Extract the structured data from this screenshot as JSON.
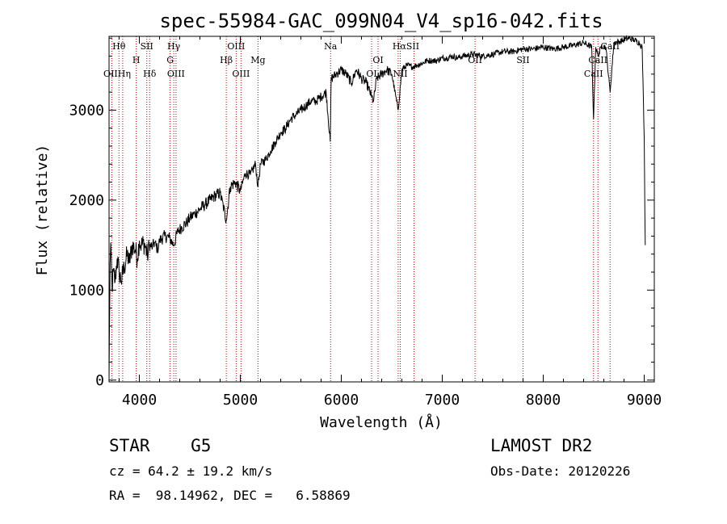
{
  "chart_data": {
    "type": "line",
    "title": "spec-55984-GAC_099N04_V4_sp16-042.fits",
    "xlabel": "Wavelength (Å)",
    "ylabel": "Flux (relative)",
    "xlim": [
      3700,
      9100
    ],
    "ylim": [
      -20,
      3820
    ],
    "xticks": [
      4000,
      5000,
      6000,
      7000,
      8000,
      9000
    ],
    "yticks": [
      0,
      1000,
      2000,
      3000
    ],
    "grid": false,
    "line_color": "#000000",
    "marker_color": "#cc0000",
    "series": [
      {
        "x": [
          3700,
          3710,
          3720,
          3730,
          3740,
          3760,
          3780,
          3800,
          3820,
          3850,
          3880,
          3900,
          3930,
          3960,
          3980,
          4000,
          4020,
          4050,
          4080,
          4100,
          4130,
          4150,
          4180,
          4200,
          4250,
          4300,
          4340,
          4380,
          4420,
          4470,
          4500,
          4550,
          4600,
          4650,
          4700,
          4750,
          4800,
          4861,
          4900,
          4950,
          5000,
          5050,
          5100,
          5150,
          5175,
          5200,
          5250,
          5300,
          5350,
          5400,
          5450,
          5500,
          5550,
          5600,
          5650,
          5700,
          5750,
          5800,
          5850,
          5890,
          5900,
          5950,
          6000,
          6050,
          6100,
          6150,
          6200,
          6250,
          6300,
          6320,
          6350,
          6400,
          6450,
          6500,
          6563,
          6600,
          6650,
          6700,
          6750,
          6800,
          6850,
          6900,
          6950,
          7000,
          7050,
          7100,
          7150,
          7200,
          7300,
          7400,
          7500,
          7600,
          7700,
          7800,
          7900,
          8000,
          8100,
          8200,
          8300,
          8400,
          8480,
          8498,
          8520,
          8542,
          8580,
          8620,
          8662,
          8700,
          8750,
          8800,
          8850,
          8900,
          8950,
          8980,
          9000,
          9010
        ],
        "y": [
          0,
          1300,
          1450,
          1000,
          1200,
          1100,
          1350,
          1200,
          1100,
          1250,
          1400,
          1300,
          1500,
          1450,
          1350,
          1550,
          1500,
          1520,
          1380,
          1500,
          1480,
          1530,
          1450,
          1550,
          1600,
          1580,
          1500,
          1650,
          1700,
          1750,
          1800,
          1850,
          1900,
          1950,
          2000,
          2050,
          2080,
          1780,
          2150,
          2200,
          2100,
          2300,
          2280,
          2400,
          2150,
          2400,
          2450,
          2550,
          2650,
          2750,
          2800,
          2900,
          2950,
          3000,
          3050,
          3100,
          3100,
          3150,
          3200,
          2650,
          3350,
          3400,
          3450,
          3400,
          3300,
          3450,
          3350,
          3300,
          3150,
          3100,
          3350,
          3400,
          3450,
          3400,
          3000,
          3450,
          3500,
          3480,
          3500,
          3520,
          3550,
          3550,
          3550,
          3580,
          3580,
          3600,
          3580,
          3600,
          3620,
          3600,
          3620,
          3650,
          3650,
          3680,
          3680,
          3700,
          3680,
          3700,
          3720,
          3750,
          3700,
          2900,
          3700,
          3600,
          3720,
          3700,
          3200,
          3750,
          3760,
          3780,
          3800,
          3780,
          3750,
          3700,
          2700,
          1500
        ]
      }
    ],
    "lines": [
      {
        "name": "Hθ",
        "x": 3798
      },
      {
        "name": "OII",
        "x": 3727
      },
      {
        "name": "Hη",
        "x": 3835
      },
      {
        "name": "H",
        "x": 3969
      },
      {
        "name": "SII",
        "x": 4074
      },
      {
        "name": "Hδ",
        "x": 4102
      },
      {
        "name": "Hγ",
        "x": 4341
      },
      {
        "name": "G",
        "x": 4305
      },
      {
        "name": "OIII",
        "x": 4363
      },
      {
        "name": "OIII",
        "x": 4959
      },
      {
        "name": "Hβ",
        "x": 4861
      },
      {
        "name": "OIII",
        "x": 5007
      },
      {
        "name": "Mg",
        "x": 5175
      },
      {
        "name": "Na",
        "x": 5894
      },
      {
        "name": "OI",
        "x": 6364
      },
      {
        "name": "OI",
        "x": 6300
      },
      {
        "name": "Hα",
        "x": 6563
      },
      {
        "name": "SII",
        "x": 6720
      },
      {
        "name": "NII",
        "x": 6584
      },
      {
        "name": "OII",
        "x": 7325
      },
      {
        "name": "SII",
        "x": 7800
      },
      {
        "name": "CaII",
        "x": 8498
      },
      {
        "name": "CaII",
        "x": 8542
      },
      {
        "name": "CaII",
        "x": 8662
      }
    ],
    "labels": [
      {
        "text": "Hθ",
        "x": 3798,
        "row": 0
      },
      {
        "text": "SII",
        "x": 4074,
        "row": 0
      },
      {
        "text": "Hγ",
        "x": 4341,
        "row": 0
      },
      {
        "text": "OIII",
        "x": 4959,
        "row": 0
      },
      {
        "text": "Na",
        "x": 5894,
        "row": 0
      },
      {
        "text": "HαSII",
        "x": 6640,
        "row": 0
      },
      {
        "text": "CaII",
        "x": 8662,
        "row": 0
      },
      {
        "text": "H",
        "x": 3969,
        "row": 1
      },
      {
        "text": "G",
        "x": 4305,
        "row": 1
      },
      {
        "text": "Hβ",
        "x": 4861,
        "row": 1
      },
      {
        "text": "Mg",
        "x": 5175,
        "row": 1
      },
      {
        "text": "OI",
        "x": 6364,
        "row": 1
      },
      {
        "text": "OII",
        "x": 7325,
        "row": 1
      },
      {
        "text": "SII",
        "x": 7800,
        "row": 1
      },
      {
        "text": "CaII",
        "x": 8542,
        "row": 1
      },
      {
        "text": "OIIHη",
        "x": 3780,
        "row": 2
      },
      {
        "text": "Hδ",
        "x": 4102,
        "row": 2
      },
      {
        "text": "OIII",
        "x": 4363,
        "row": 2
      },
      {
        "text": "OIII",
        "x": 5007,
        "row": 2
      },
      {
        "text": "OI",
        "x": 6300,
        "row": 2
      },
      {
        "text": "NII",
        "x": 6584,
        "row": 2
      },
      {
        "text": "CaII",
        "x": 8498,
        "row": 2
      }
    ]
  },
  "info": {
    "class": "STAR    G5",
    "survey": "LAMOST DR2",
    "cz": "cz = 64.2 ± 19.2 km/s",
    "obs_date": "Obs-Date: 20120226",
    "coords": "RA =  98.14962, DEC =   6.58869"
  }
}
